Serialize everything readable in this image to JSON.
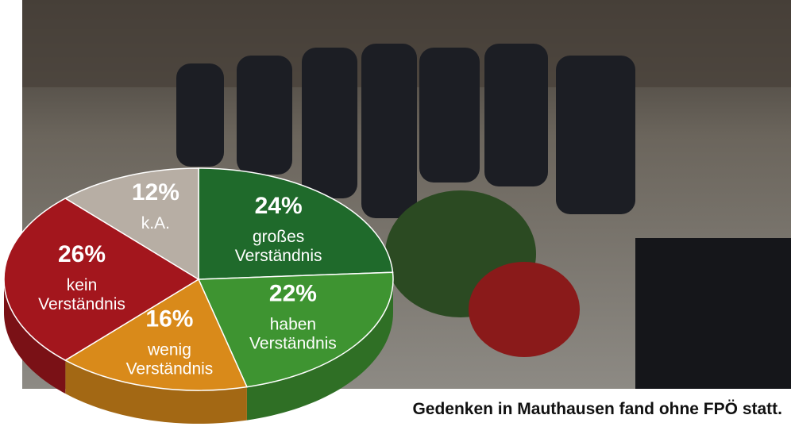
{
  "chart_data": {
    "type": "pie",
    "categories": [
      "großes Verständnis",
      "haben Verständnis",
      "wenig Verständnis",
      "kein Verständnis",
      "k.A."
    ],
    "values": [
      24,
      22,
      16,
      26,
      12
    ],
    "value_labels": [
      "24%",
      "22%",
      "16%",
      "26%",
      "12%"
    ],
    "colors": [
      "#1f6a2b",
      "#3e9431",
      "#d98a1a",
      "#a3161d",
      "#b7aea4"
    ]
  },
  "caption": "Gedenken in Mauthausen fand ohne FPÖ statt."
}
